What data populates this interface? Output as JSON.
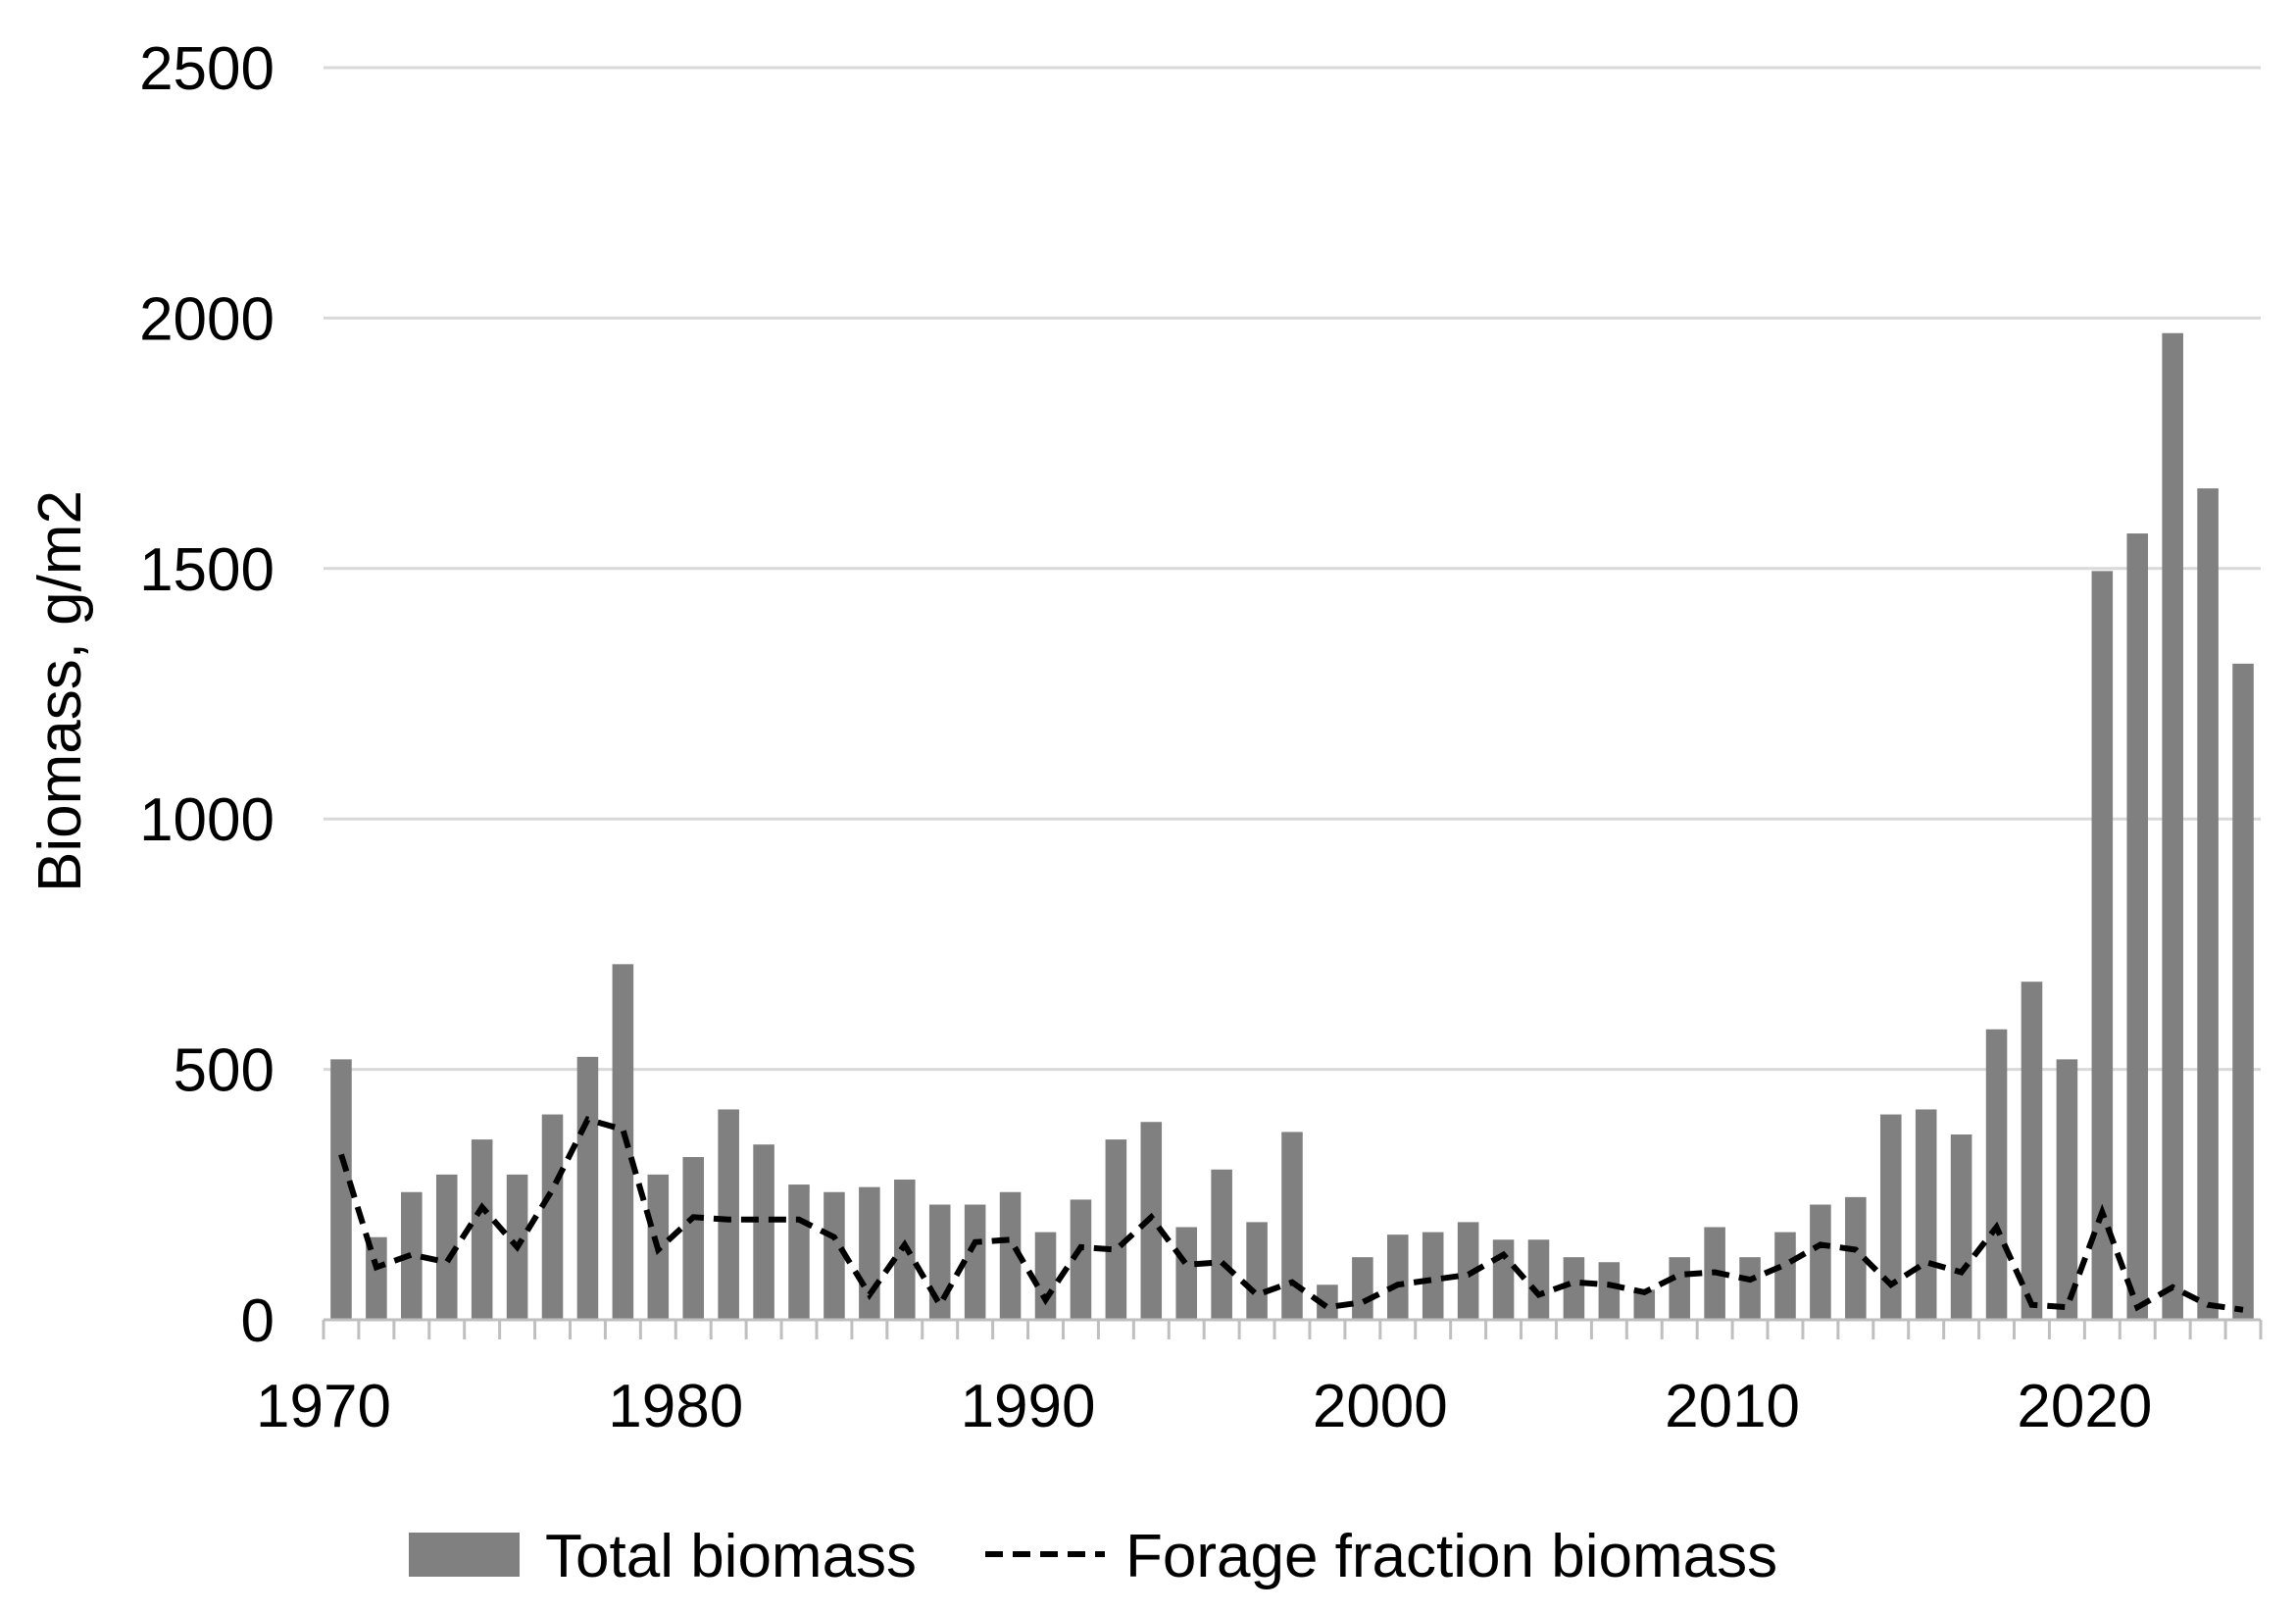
{
  "chart_data": {
    "type": "bar",
    "ylabel": "Biomass, g/m2",
    "xlabel": "",
    "ylim": [
      0,
      2500
    ],
    "yticks": [
      0,
      500,
      1000,
      1500,
      2000,
      2500
    ],
    "xticks": [
      1970,
      1980,
      1990,
      2000,
      2010,
      2020
    ],
    "x": [
      1970,
      1971,
      1972,
      1973,
      1974,
      1975,
      1976,
      1977,
      1978,
      1979,
      1980,
      1981,
      1982,
      1983,
      1984,
      1985,
      1986,
      1987,
      1988,
      1989,
      1990,
      1991,
      1992,
      1993,
      1994,
      1995,
      1996,
      1997,
      1998,
      1999,
      2000,
      2001,
      2002,
      2003,
      2004,
      2005,
      2006,
      2007,
      2008,
      2009,
      2010,
      2011,
      2012,
      2013,
      2014,
      2015,
      2016,
      2017,
      2018,
      2019,
      2020,
      2021,
      2022,
      2023,
      2024
    ],
    "series": [
      {
        "name": "Total biomass",
        "style": "bar",
        "color": "#808080",
        "values": [
          520,
          165,
          255,
          290,
          360,
          290,
          410,
          525,
          710,
          290,
          325,
          420,
          350,
          270,
          255,
          265,
          280,
          230,
          230,
          255,
          175,
          240,
          360,
          395,
          185,
          300,
          195,
          375,
          70,
          125,
          170,
          175,
          195,
          160,
          160,
          125,
          115,
          60,
          125,
          185,
          125,
          175,
          230,
          245,
          410,
          420,
          370,
          580,
          675,
          520,
          1495,
          1570,
          1970,
          1660,
          1310
        ]
      },
      {
        "name": "Forage fraction biomass",
        "style": "dashed-line",
        "color": "#000000",
        "values": [
          330,
          105,
          130,
          115,
          225,
          145,
          260,
          400,
          380,
          140,
          205,
          200,
          200,
          200,
          165,
          50,
          150,
          30,
          155,
          160,
          40,
          145,
          140,
          205,
          110,
          115,
          50,
          75,
          25,
          35,
          70,
          80,
          90,
          130,
          50,
          75,
          70,
          55,
          90,
          95,
          80,
          110,
          150,
          140,
          70,
          115,
          95,
          185,
          30,
          25,
          215,
          25,
          65,
          30,
          20
        ]
      }
    ],
    "legend": {
      "position": "bottom",
      "items": [
        "Total biomass",
        "Forage fraction biomass"
      ]
    },
    "grid": true
  }
}
